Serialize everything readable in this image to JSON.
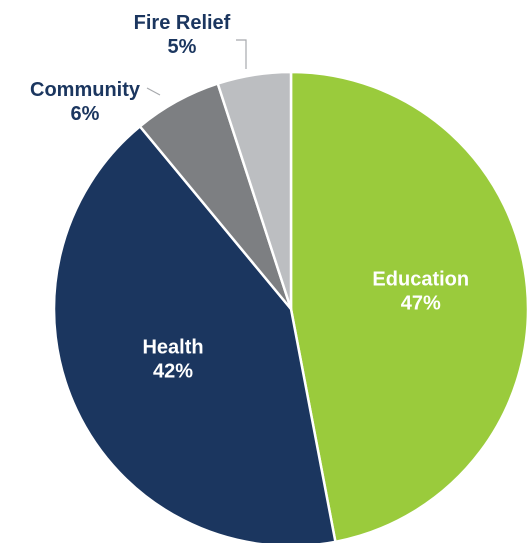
{
  "chart_data": {
    "type": "pie",
    "title": "",
    "slices": [
      {
        "label": "Education",
        "value": 47,
        "value_label": "47%",
        "color": "#9acb3c",
        "label_color": "#ffffff",
        "label_placement": "inside"
      },
      {
        "label": "Health",
        "value": 42,
        "value_label": "42%",
        "color": "#1b365f",
        "label_color": "#ffffff",
        "label_placement": "inside"
      },
      {
        "label": "Community",
        "value": 6,
        "value_label": "6%",
        "color": "#7d7f82",
        "label_color": "#1b365f",
        "label_placement": "outside"
      },
      {
        "label": "Fire Relief",
        "value": 5,
        "value_label": "5%",
        "color": "#bcbec1",
        "label_color": "#1b365f",
        "label_placement": "outside"
      }
    ],
    "start_angle_deg": 0,
    "direction": "clockwise",
    "legend": "none"
  }
}
